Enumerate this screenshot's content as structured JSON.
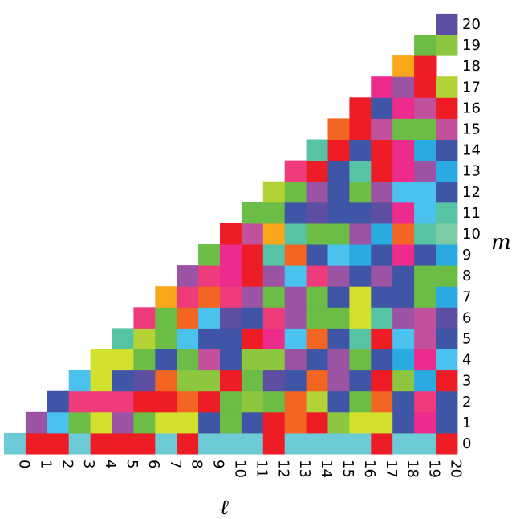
{
  "chart_data": {
    "type": "heatmap",
    "shape": "lower-triangular",
    "xlabel": "ℓ",
    "ylabel": "m",
    "x_ticks": [
      "0",
      "1",
      "2",
      "3",
      "4",
      "5",
      "6",
      "7",
      "8",
      "9",
      "10",
      "11",
      "12",
      "13",
      "14",
      "15",
      "16",
      "17",
      "18",
      "19",
      "20"
    ],
    "y_ticks": [
      "0",
      "1",
      "2",
      "3",
      "4",
      "5",
      "6",
      "7",
      "8",
      "9",
      "10",
      "11",
      "12",
      "13",
      "14",
      "15",
      "16",
      "17",
      "18",
      "19",
      "20"
    ],
    "palette": {
      "R": "#ee1c24",
      "C": "#6dcbd7",
      "P": "#9b53a3",
      "S": "#4bc2ee",
      "B": "#3f55a5",
      "G": "#6bbd45",
      "Y": "#d3e12c",
      "M": "#ec2b8c",
      "O": "#f26522",
      "K": "#ee3b7b",
      "L": "#8dc63f",
      "T": "#55c3a4",
      "D": "#5d4ea2",
      "A": "#f9a61a",
      "U": "#29aae1",
      "E": "#7bcca5",
      "V": "#b2d235",
      "Q": "#c1519c"
    },
    "rows": [
      "CRRCRRRCRCCCRCCCCRCCR",
      "PSGYPGYYBGBRORLYYBMB",
      "BKKKRRORGLGOVBGOBKBG",
      "SYBDOLLRGDBOPBRLUR G",
      "YYGBGQBLLPBPGBUMSQ",
      "TVGSBBRMSOBTRSQB",
      "KGOSDBKPGGYTPQD",
      "AKOKPGPGBYBBGU",
      "PKMRPSKPBPBGGR",
      "GMRTOBSUBMBUYB",
      "RQATGGPUOTEB",
      "GGBDBBDMSTR",
      "VGPBGPSSBG",
      "KRBTRMPUU",
      "TRBRMUBS",
      "ORQGGQLP",
      "RBMQRGB",
      "MPRVT",
      "AR T",
      "GL",
      "D"
    ]
  }
}
